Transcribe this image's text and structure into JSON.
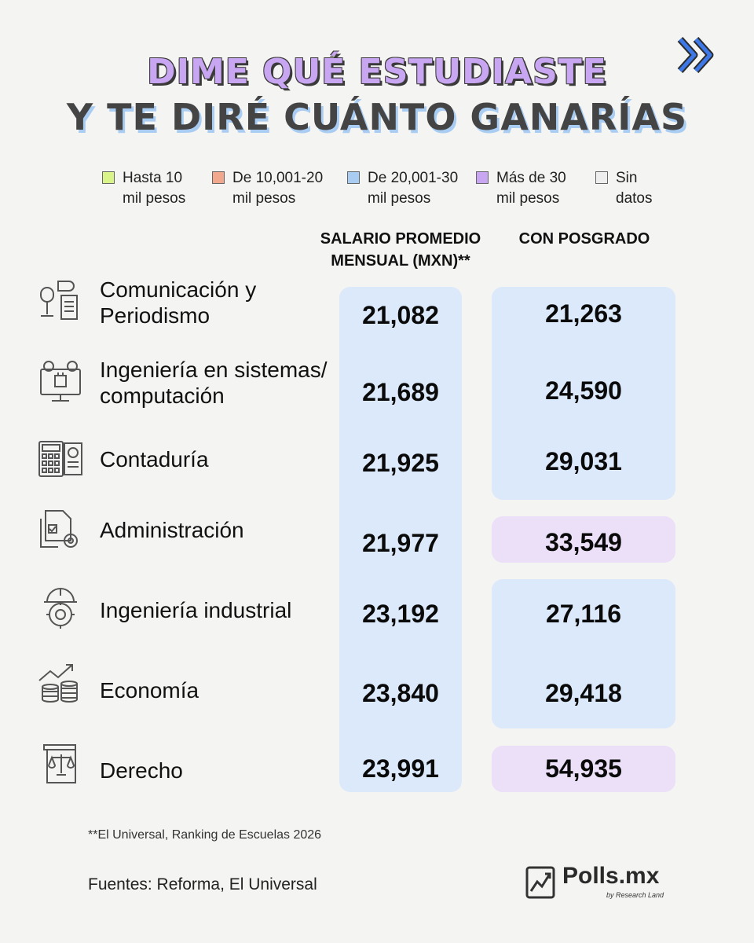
{
  "title": {
    "line1": "Dime qué estudiaste",
    "line2": "y te diré cuánto ganarías"
  },
  "legend": [
    {
      "label": "Hasta 10 mil pesos",
      "color": "#d9f58a"
    },
    {
      "label": "De 10,001-20 mil pesos",
      "color": "#f2a88c"
    },
    {
      "label": "De 20,001-30 mil pesos",
      "color": "#a9ccf3"
    },
    {
      "label": "Más de 30 mil pesos",
      "color": "#c9a6f2"
    },
    {
      "label": "Sin datos",
      "color": "#eeeeee"
    }
  ],
  "columns": {
    "salary": "Salario promedio mensual (MXN)**",
    "postgrad": "Con posgrado"
  },
  "chart_data": {
    "type": "table",
    "title": "Dime qué estudiaste y te diré cuánto ganarías",
    "columns": [
      "Salario promedio mensual (MXN)**",
      "Con posgrado"
    ],
    "rows": [
      {
        "career": "Comunicación y Periodismo",
        "icon": "microphone-news-icon",
        "salary": "21,082",
        "postgrad": "21,263",
        "salary_bracket": "De 20,001-30 mil pesos",
        "postgrad_bracket": "De 20,001-30 mil pesos"
      },
      {
        "career": "Ingeniería en sistemas/ computación",
        "icon": "computer-gears-icon",
        "salary": "21,689",
        "postgrad": "24,590",
        "salary_bracket": "De 20,001-30 mil pesos",
        "postgrad_bracket": "De 20,001-30 mil pesos"
      },
      {
        "career": "Contaduría",
        "icon": "calculator-report-icon",
        "salary": "21,925",
        "postgrad": "29,031",
        "salary_bracket": "De 20,001-30 mil pesos",
        "postgrad_bracket": "De 20,001-30 mil pesos"
      },
      {
        "career": "Administración",
        "icon": "document-gear-icon",
        "salary": "21,977",
        "postgrad": "33,549",
        "salary_bracket": "De 20,001-30 mil pesos",
        "postgrad_bracket": "Más de 30 mil pesos"
      },
      {
        "career": "Ingeniería industrial",
        "icon": "hardhat-gear-icon",
        "salary": "23,192",
        "postgrad": "27,116",
        "salary_bracket": "De 20,001-30 mil pesos",
        "postgrad_bracket": "De 20,001-30 mil pesos"
      },
      {
        "career": "Economía",
        "icon": "coins-growth-icon",
        "salary": "23,840",
        "postgrad": "29,418",
        "salary_bracket": "De 20,001-30 mil pesos",
        "postgrad_bracket": "De 20,001-30 mil pesos"
      },
      {
        "career": "Derecho",
        "icon": "law-scales-icon",
        "salary": "23,991",
        "postgrad": "54,935",
        "salary_bracket": "De 20,001-30 mil pesos",
        "postgrad_bracket": "Más de 30 mil pesos"
      }
    ]
  },
  "footnote": "**El Universal, Ranking de Escuelas 2026",
  "sources": "Fuentes: Reforma, El Universal",
  "logo": {
    "name": "Polls.mx",
    "sub": "by Research Land"
  }
}
